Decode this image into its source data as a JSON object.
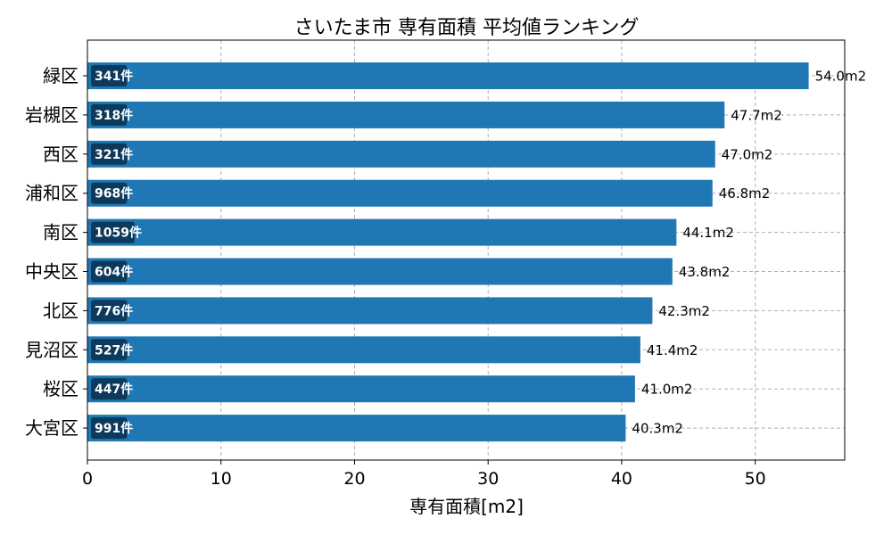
{
  "chart_data": {
    "type": "bar",
    "orientation": "horizontal",
    "title": "さいたま市 専有面積 平均値ランキング",
    "xlabel": "専有面積[m2]",
    "ylabel": "",
    "xlim": [
      0,
      56.7
    ],
    "xticks": [
      0,
      10,
      20,
      30,
      40,
      50
    ],
    "grid": true,
    "bar_color": "#1f77b4",
    "badge_color": "#0d3a5c",
    "value_suffix": "m2",
    "count_suffix": "件",
    "categories": [
      "緑区",
      "岩槻区",
      "西区",
      "浦和区",
      "南区",
      "中央区",
      "北区",
      "見沼区",
      "桜区",
      "大宮区"
    ],
    "values": [
      54.0,
      47.7,
      47.0,
      46.8,
      44.1,
      43.8,
      42.3,
      41.4,
      41.0,
      40.3
    ],
    "counts": [
      341,
      318,
      321,
      968,
      1059,
      604,
      776,
      527,
      447,
      991
    ]
  }
}
